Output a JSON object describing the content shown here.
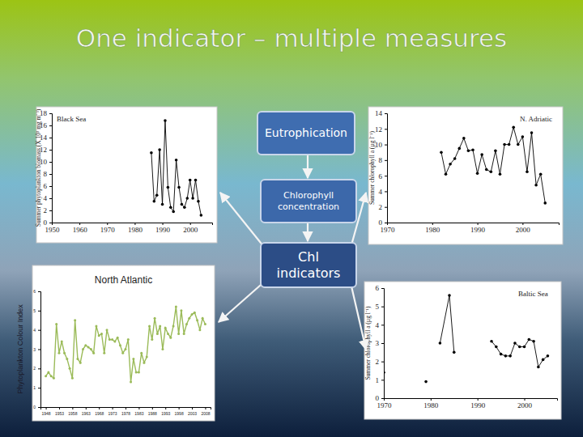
{
  "title": "One indicator – multiple measures",
  "diagram": {
    "boxes": [
      "Eutrophication",
      "Chlorophyll concentration",
      "Chl indicators"
    ]
  },
  "chart_data": [
    {
      "type": "line",
      "title": "Black Sea",
      "y_label": "Summer phytoplankton biomass (X 10³ mg m⁻³)",
      "color": "#000000",
      "marker": "circle",
      "line_style": "solid",
      "x": [
        1986,
        1987,
        1988,
        1989,
        1990,
        1991,
        1992,
        1993,
        1994,
        1995,
        1996,
        1997,
        1998,
        1999,
        2000,
        2001,
        2002,
        2003,
        2004
      ],
      "values": [
        11.5,
        3.5,
        4.5,
        12,
        3,
        16.8,
        5.8,
        2.5,
        1.8,
        10.3,
        5.8,
        3,
        2.5,
        4,
        7,
        4,
        7,
        3.5,
        1.2
      ],
      "xlim": [
        1950,
        2008
      ],
      "ylim": [
        0,
        18
      ],
      "xticks": [
        1950,
        1960,
        1970,
        1980,
        1990,
        2000
      ],
      "yticks": [
        0,
        2,
        4,
        6,
        8,
        10,
        12,
        14,
        16,
        18
      ]
    },
    {
      "type": "line",
      "title": "N. Adriatic",
      "y_label": "Summer chlorophyll a (µg l⁻¹)",
      "color": "#000000",
      "marker": "circle",
      "line_style": "solid",
      "x": [
        1982,
        1983,
        1984,
        1985,
        1986,
        1987,
        1988,
        1989,
        1990,
        1991,
        1992,
        1993,
        1994,
        1995,
        1996,
        1997,
        1998,
        1999,
        2000,
        2001,
        2002,
        2003,
        2004,
        2005
      ],
      "values": [
        9,
        6.2,
        7.5,
        8.2,
        9.5,
        10.8,
        9.2,
        9.3,
        6.3,
        8.7,
        6.8,
        6.5,
        9.2,
        6.2,
        10,
        10,
        12.2,
        10,
        11,
        6.5,
        11.5,
        4.8,
        6.2,
        2.5
      ],
      "xlim": [
        1970,
        2008
      ],
      "ylim": [
        0,
        14
      ],
      "xticks": [
        1970,
        1980,
        1990,
        2000
      ],
      "yticks": [
        0,
        2,
        4,
        6,
        8,
        10,
        12,
        14
      ]
    },
    {
      "type": "line",
      "title": "North Atlantic",
      "y_label": "Phytoplankton Colour Index",
      "color": "#9bbb59",
      "marker": "circle",
      "line_style": "solid",
      "x": [
        1948,
        1949,
        1950,
        1951,
        1952,
        1953,
        1954,
        1955,
        1956,
        1957,
        1958,
        1959,
        1960,
        1961,
        1962,
        1963,
        1964,
        1965,
        1966,
        1967,
        1968,
        1969,
        1970,
        1971,
        1972,
        1973,
        1974,
        1975,
        1976,
        1977,
        1978,
        1979,
        1980,
        1981,
        1982,
        1983,
        1984,
        1985,
        1986,
        1987,
        1988,
        1989,
        1990,
        1991,
        1992,
        1993,
        1994,
        1995,
        1996,
        1997,
        1998,
        1999,
        2000,
        2001,
        2002,
        2003,
        2004,
        2005,
        2006,
        2007,
        2008
      ],
      "values": [
        1.6,
        1.8,
        1.6,
        1.5,
        4.3,
        2.8,
        3.4,
        2.8,
        2.5,
        2.0,
        1.5,
        4.5,
        2.5,
        2.3,
        3.0,
        3.2,
        3.1,
        3.0,
        2.8,
        4.2,
        3.7,
        3.8,
        2.8,
        4.0,
        3.5,
        3.5,
        3.4,
        3.6,
        3.2,
        2.8,
        3.0,
        3.5,
        1.3,
        2.5,
        1.8,
        1.8,
        2.8,
        2.3,
        2.6,
        4.2,
        3.5,
        4.6,
        3.8,
        4.2,
        3.0,
        4.1,
        3.8,
        3.6,
        4.2,
        5.2,
        3.8,
        5.0,
        3.8,
        4.3,
        4.6,
        4.8,
        4.9,
        4.5,
        4.0,
        4.6,
        4.3
      ],
      "xlim": [
        1946,
        2010
      ],
      "ylim": [
        0,
        6
      ],
      "xticks": [
        1948,
        1953,
        1958,
        1963,
        1968,
        1973,
        1978,
        1983,
        1988,
        1993,
        1998,
        2003,
        2008
      ],
      "yticks": [
        0,
        1,
        2,
        3,
        4,
        5,
        6
      ]
    },
    {
      "type": "line",
      "title": "Baltic Sea",
      "y_label": "Summer chlorophyll a (µg l⁻¹)",
      "color": "#000000",
      "marker": "circle",
      "line_style": "solid",
      "x": [
        1970,
        1975,
        1979,
        1980,
        1982,
        1984,
        1985,
        1990,
        1993,
        1994,
        1995,
        1996,
        1997,
        1998,
        1999,
        2000,
        2001,
        2002,
        2003,
        2004,
        2005
      ],
      "values": [
        1.4,
        null,
        0.9,
        null,
        3.0,
        5.6,
        2.5,
        null,
        3.1,
        2.8,
        2.4,
        2.3,
        2.3,
        3.0,
        2.8,
        2.8,
        3.2,
        3.1,
        1.7,
        2.1,
        2.3
      ],
      "xlim": [
        1970,
        2007
      ],
      "ylim": [
        0,
        6
      ],
      "xticks": [
        1970,
        1980,
        1990,
        2000
      ],
      "yticks": [
        0,
        1,
        2,
        3,
        4,
        5,
        6
      ]
    }
  ]
}
